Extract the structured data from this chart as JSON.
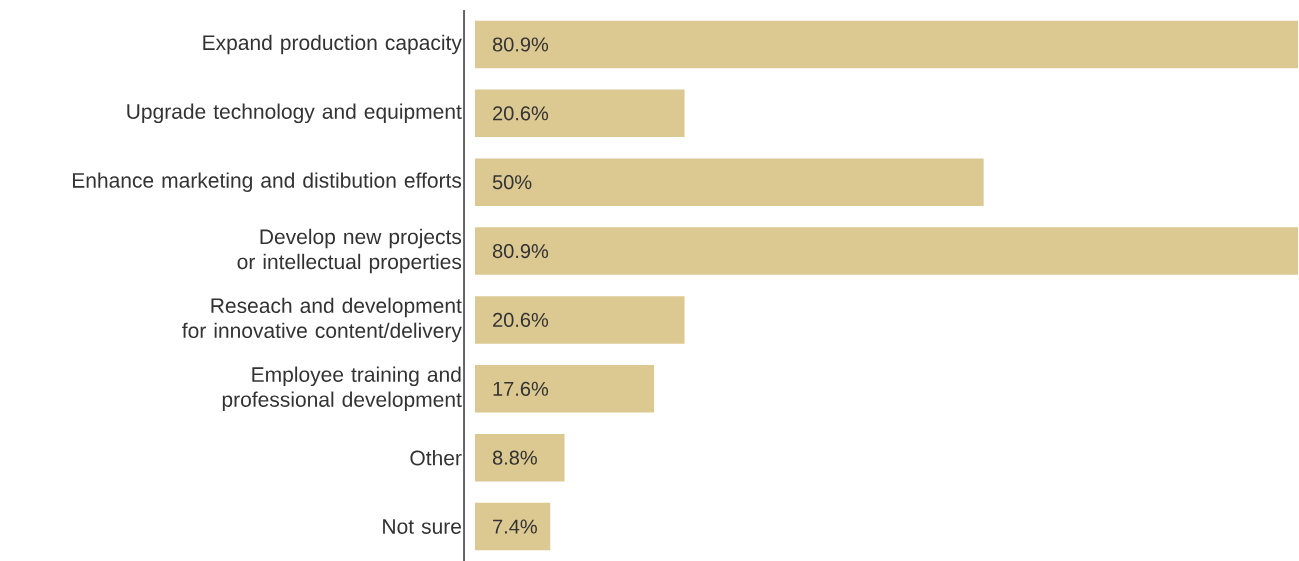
{
  "chart_data": {
    "type": "bar",
    "orientation": "horizontal",
    "categories": [
      "Expand production capacity",
      "Upgrade technology and equipment",
      "Enhance marketing and distibution efforts",
      "Develop new projects or intellectual properties",
      "Reseach and development for innovative content/delivery",
      "Employee training and professional development",
      "Other",
      "Not sure"
    ],
    "values": [
      80.9,
      20.6,
      50,
      80.9,
      20.6,
      17.6,
      8.8,
      7.4
    ],
    "value_labels": [
      "80.9%",
      "20.6%",
      "50%",
      "80.9%",
      "20.6%",
      "17.6%",
      "8.8%",
      "7.4%"
    ],
    "color": "#dcc891"
  }
}
